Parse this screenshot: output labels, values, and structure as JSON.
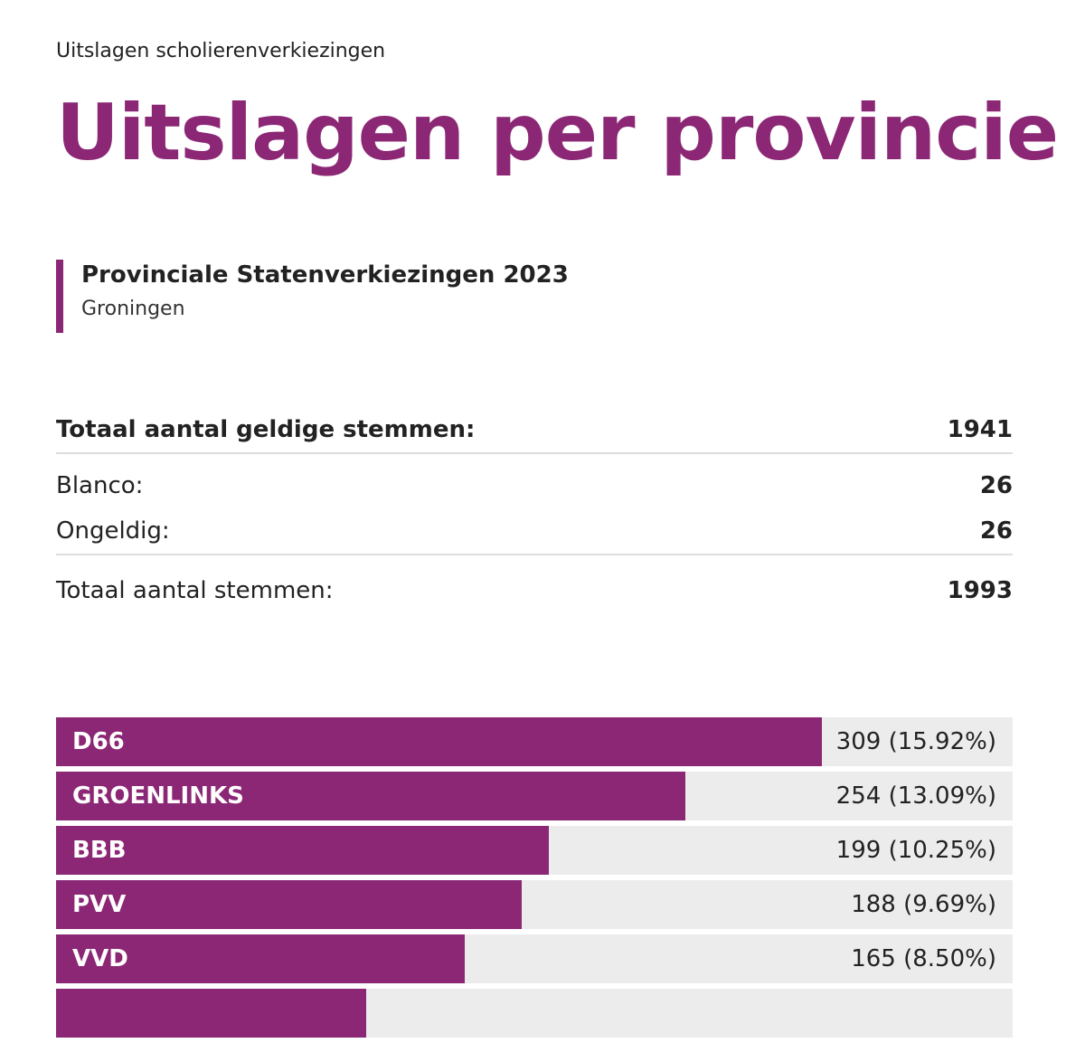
{
  "header": {
    "eyebrow": "Uitslagen scholierenverkiezingen",
    "title": "Uitslagen per provincie"
  },
  "election": {
    "title": "Provinciale Statenverkiezingen 2023",
    "region": "Groningen"
  },
  "totals": {
    "valid_label": "Totaal aantal geldige stemmen:",
    "valid_value": "1941",
    "blank_label": "Blanco:",
    "blank_value": "26",
    "invalid_label": "Ongeldig:",
    "invalid_value": "26",
    "total_label": "Totaal aantal stemmen:",
    "total_value": "1993"
  },
  "colors": {
    "accent": "#8b2775",
    "bar_track": "#ececec"
  },
  "chart_data": {
    "type": "bar",
    "orientation": "horizontal",
    "categories": [
      "D66",
      "GROENLINKS",
      "BBB",
      "PVV",
      "VVD",
      ""
    ],
    "values": [
      309,
      254,
      199,
      188,
      165,
      125
    ],
    "value_labels": [
      "309 (15.92%)",
      "254 (13.09%)",
      "199 (10.25%)",
      "188 (9.69%)",
      "165 (8.50%)",
      ""
    ],
    "xlim": [
      0,
      386
    ]
  }
}
